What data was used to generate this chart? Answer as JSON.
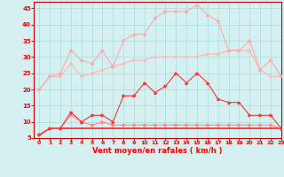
{
  "x": [
    0,
    1,
    2,
    3,
    4,
    5,
    6,
    7,
    8,
    9,
    10,
    11,
    12,
    13,
    14,
    15,
    16,
    17,
    18,
    19,
    20,
    21,
    22,
    23
  ],
  "line1": [
    6,
    8,
    8,
    8,
    8,
    8,
    8,
    8,
    8,
    8,
    8,
    8,
    8,
    8,
    8,
    8,
    8,
    8,
    8,
    8,
    8,
    8,
    8,
    8
  ],
  "line2": [
    6,
    8,
    8,
    12,
    10,
    9,
    10,
    9,
    9,
    9,
    9,
    9,
    9,
    9,
    9,
    9,
    9,
    9,
    9,
    9,
    9,
    9,
    9,
    8
  ],
  "line3": [
    6,
    8,
    8,
    13,
    10,
    12,
    12,
    10,
    18,
    18,
    22,
    19,
    21,
    25,
    22,
    25,
    22,
    17,
    16,
    16,
    12,
    12,
    12,
    8
  ],
  "line4": [
    20,
    24,
    24,
    28,
    24,
    25,
    26,
    27,
    28,
    29,
    29,
    30,
    30,
    30,
    30,
    30,
    31,
    31,
    32,
    32,
    32,
    26,
    24,
    24
  ],
  "line5": [
    20,
    24,
    25,
    32,
    29,
    28,
    32,
    27,
    35,
    37,
    37,
    42,
    44,
    44,
    44,
    46,
    43,
    41,
    32,
    32,
    35,
    26,
    29,
    24
  ],
  "bg_color": "#d4f0f0",
  "grid_color": "#aadddd",
  "line1_color": "#ff0000",
  "line2_color": "#ff8888",
  "line3_color": "#ff3333",
  "line4_color": "#ffbbbb",
  "line5_color": "#ffaaaa",
  "xlabel": "Vent moyen/en rafales ( km/h )",
  "ylim": [
    5,
    47
  ],
  "xlim": [
    -0.5,
    23
  ],
  "yticks": [
    5,
    10,
    15,
    20,
    25,
    30,
    35,
    40,
    45
  ],
  "xticks": [
    0,
    1,
    2,
    3,
    4,
    5,
    6,
    7,
    8,
    9,
    10,
    11,
    12,
    13,
    14,
    15,
    16,
    17,
    18,
    19,
    20,
    21,
    22,
    23
  ],
  "xtick_labels": [
    "0",
    "1",
    "2",
    "3",
    "4",
    "5",
    "6",
    "7",
    "8",
    "9",
    "10",
    "11",
    "12",
    "13",
    "14",
    "15",
    "16",
    "17",
    "18",
    "19",
    "20",
    "21",
    "22",
    "23"
  ]
}
